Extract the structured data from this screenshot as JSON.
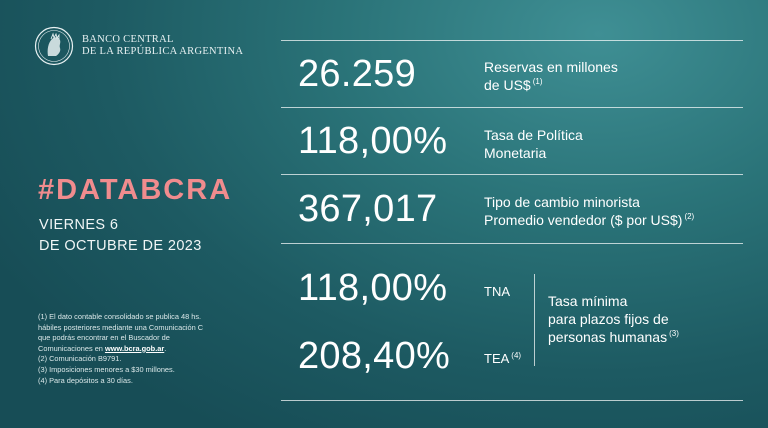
{
  "header": {
    "bank_line1": "BANCO CENTRAL",
    "bank_line2": "DE LA REPÚBLICA ARGENTINA",
    "seal_icon": "bcra-seal-icon"
  },
  "left": {
    "hashtag": "#DATABCRA",
    "date_line1": "VIERNES 6",
    "date_line2": "DE OCTUBRE DE 2023"
  },
  "indicators": [
    {
      "value": "26.259",
      "label_line1": "Reservas en millones",
      "label_line2": "de US$",
      "note": "(1)"
    },
    {
      "value": "118,00%",
      "label_line1": "Tasa de Política",
      "label_line2": "Monetaria",
      "note": ""
    },
    {
      "value": "367,017",
      "label_line1": "Tipo de cambio minorista",
      "label_line2": "Promedio vendedor  ($ por US$)",
      "note": "(2)"
    }
  ],
  "plazo_fijo": {
    "tna_value": "118,00%",
    "tna_label": "TNA",
    "tea_value": "208,40%",
    "tea_label": "TEA",
    "tea_note": "(4)",
    "desc_line1": "Tasa mínima",
    "desc_line2": "para plazos fijos de",
    "desc_line3": "personas humanas",
    "desc_note": "(3)"
  },
  "footnotes": {
    "n1_line1": "(1) El dato contable consolidado se publica 48 hs.",
    "n1_line2": "hábiles posteriores mediante una Comunicación C",
    "n1_line3": "que podrás encontrar en el Buscador de",
    "n1_line4_prefix": "Comunicaciones en ",
    "n1_link": "www.bcra.gob.ar",
    "n1_line4_suffix": ".",
    "n2": "(2) Comunicación B9791.",
    "n3": "(3) Imposiciones menores a $30 millones.",
    "n4": "(4) Para depósitos a 30 días."
  },
  "colors": {
    "background_light": "#3f8f94",
    "background_dark": "#174d56",
    "hashtag": "#f08c8e"
  }
}
